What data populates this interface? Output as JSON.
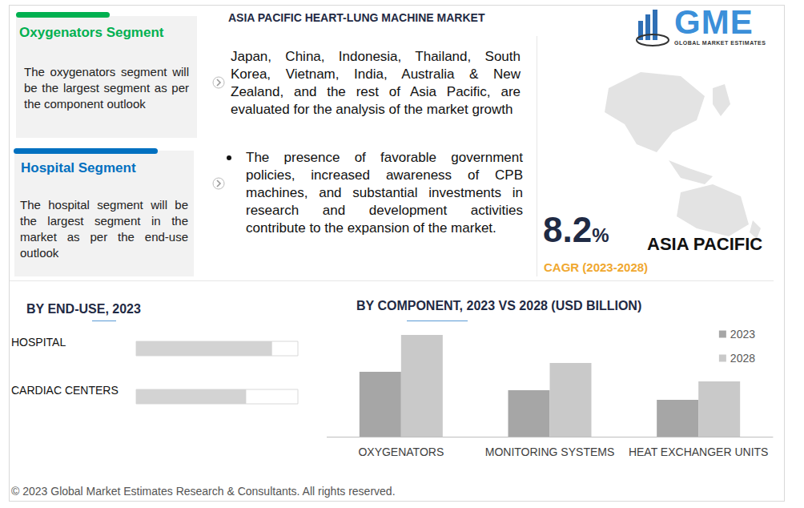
{
  "header": {
    "title": "ASIA PACIFIC HEART-LUNG MACHINE MARKET"
  },
  "logo": {
    "name": "GME",
    "tagline": "GLOBAL MARKET ESTIMATES"
  },
  "panels": [
    {
      "title": "Oxygenators Segment",
      "text": "The oxygenators segment will be the largest segment as per the component outlook",
      "color": "#00b050"
    },
    {
      "title": "Hospital Segment",
      "text": "The hospital segment will be the largest segment in the market as per the end-use outlook",
      "color": "#0070c0"
    }
  ],
  "bullets": [
    "Japan, China, Indonesia, Thailand, South Korea, Vietnam, India, Australia & New Zealand, and the rest of Asia Pacific, are evaluated for the analysis of the market growth",
    "The presence of favorable government policies, increased awareness of CPB machines, and substantial investments in research and development activities contribute to the expansion of the market."
  ],
  "cagr": {
    "value": "8.2",
    "suffix": "%",
    "region": "ASIA PACIFIC",
    "label": "CAGR (2023-2028)"
  },
  "footer": "© 2023 Global Market Estimates Research & Consultants. All rights reserved.",
  "chart_data": [
    {
      "type": "bar",
      "title": "BY END-USE, 2023",
      "orientation": "horizontal",
      "categories": [
        "HOSPITAL",
        "CARDIAC CENTERS"
      ],
      "values": [
        84,
        68
      ],
      "color": "#d3d3d3",
      "xlim": [
        0,
        100
      ],
      "tick_labels": false,
      "grid": false
    },
    {
      "type": "bar",
      "title": "BY COMPONENT, 2023 VS 2028 (USD BILLION)",
      "categories": [
        "OXYGENATORS",
        "MONITORING SYSTEMS",
        "HEAT EXCHANGER UNITS"
      ],
      "series": [
        {
          "name": "2023",
          "color": "#a6a6a6",
          "values": [
            0.081,
            0.058,
            0.046
          ]
        },
        {
          "name": "2028",
          "color": "#c9c9c9",
          "values": [
            0.127,
            0.092,
            0.069
          ]
        }
      ],
      "ylim": [
        0,
        0.14
      ],
      "tick_labels": false,
      "grid": false,
      "legend": "upper right"
    }
  ]
}
